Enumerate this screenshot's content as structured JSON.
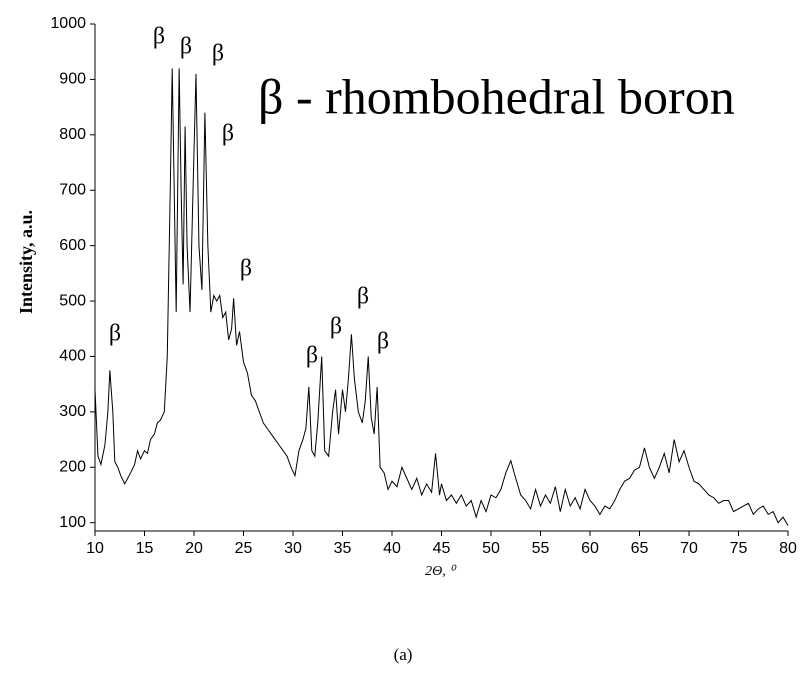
{
  "chart_data": {
    "type": "line",
    "title": "β - rhombohedral boron",
    "xlabel": "2Θ, ⁰",
    "ylabel": "Intensity, a.u.",
    "caption": "(a)",
    "annotations": [
      "β",
      "β",
      "β",
      "β",
      "β",
      "β",
      "β",
      "β",
      "β",
      "β"
    ],
    "xlim": [
      10,
      80
    ],
    "xticks": [
      10,
      15,
      20,
      25,
      30,
      35,
      40,
      45,
      50,
      55,
      60,
      65,
      70,
      75,
      80
    ],
    "ylim": [
      85,
      1000
    ],
    "yticks": [
      100,
      200,
      300,
      400,
      500,
      600,
      700,
      800,
      900,
      1000
    ],
    "series": [
      {
        "color": "#000000",
        "x": [
          10,
          10.3,
          10.6,
          11,
          11.3,
          11.5,
          11.8,
          12,
          12.3,
          12.6,
          13,
          13.3,
          13.6,
          14,
          14.3,
          14.6,
          15,
          15.3,
          15.6,
          16,
          16.3,
          16.6,
          17,
          17.3,
          17.6,
          17.8,
          18.0,
          18.2,
          18.5,
          18.7,
          18.9,
          19.1,
          19.3,
          19.6,
          19.9,
          20.2,
          20.5,
          20.8,
          21.1,
          21.4,
          21.7,
          22,
          22.3,
          22.6,
          22.9,
          23.2,
          23.5,
          23.8,
          24,
          24.3,
          24.6,
          25,
          25.4,
          25.8,
          26.2,
          26.6,
          27,
          27.4,
          27.8,
          28.2,
          28.6,
          29,
          29.4,
          29.8,
          30.2,
          30.6,
          31,
          31.3,
          31.6,
          31.9,
          32.2,
          32.5,
          32.9,
          33.2,
          33.6,
          34,
          34.3,
          34.6,
          35,
          35.3,
          35.6,
          35.9,
          36.2,
          36.6,
          37,
          37.3,
          37.6,
          37.9,
          38.2,
          38.5,
          38.8,
          39.2,
          39.6,
          40,
          40.5,
          41,
          41.5,
          42,
          42.5,
          43,
          43.5,
          44,
          44.4,
          44.8,
          45,
          45.5,
          46,
          46.5,
          47,
          47.5,
          48,
          48.5,
          49,
          49.5,
          50,
          50.5,
          51,
          51.5,
          52,
          52.5,
          53,
          53.5,
          54,
          54.5,
          55,
          55.5,
          56,
          56.5,
          57,
          57.5,
          58,
          58.5,
          59,
          59.5,
          60,
          60.5,
          61,
          61.5,
          62,
          62.5,
          63,
          63.5,
          64,
          64.5,
          65,
          65.5,
          66,
          66.5,
          67,
          67.5,
          68,
          68.5,
          69,
          69.5,
          70,
          70.5,
          71,
          71.5,
          72,
          72.5,
          73,
          73.5,
          74,
          74.5,
          75,
          75.5,
          76,
          76.5,
          77,
          77.5,
          78,
          78.5,
          79,
          79.5,
          80
        ],
        "values": [
          340,
          220,
          205,
          240,
          300,
          375,
          300,
          210,
          200,
          185,
          170,
          180,
          190,
          205,
          230,
          215,
          230,
          225,
          250,
          260,
          280,
          285,
          300,
          400,
          700,
          920,
          700,
          480,
          920,
          700,
          530,
          815,
          600,
          480,
          700,
          910,
          600,
          520,
          840,
          600,
          480,
          510,
          500,
          510,
          470,
          480,
          430,
          450,
          505,
          420,
          445,
          390,
          370,
          330,
          320,
          300,
          280,
          270,
          260,
          250,
          240,
          230,
          220,
          200,
          185,
          230,
          250,
          270,
          345,
          230,
          220,
          280,
          400,
          230,
          220,
          300,
          340,
          260,
          340,
          300,
          360,
          440,
          360,
          300,
          280,
          320,
          400,
          290,
          260,
          345,
          200,
          190,
          160,
          175,
          165,
          200,
          180,
          160,
          180,
          150,
          170,
          155,
          225,
          150,
          170,
          140,
          150,
          135,
          150,
          130,
          140,
          110,
          140,
          120,
          150,
          145,
          160,
          190,
          212,
          180,
          150,
          140,
          125,
          160,
          130,
          150,
          135,
          165,
          120,
          160,
          130,
          145,
          125,
          160,
          140,
          130,
          115,
          130,
          125,
          140,
          160,
          175,
          180,
          195,
          200,
          235,
          200,
          180,
          200,
          225,
          190,
          250,
          210,
          230,
          200,
          175,
          170,
          160,
          150,
          145,
          135,
          140,
          140,
          120,
          125,
          130,
          135,
          115,
          125,
          130,
          115,
          120,
          100,
          110,
          95
        ]
      }
    ]
  }
}
